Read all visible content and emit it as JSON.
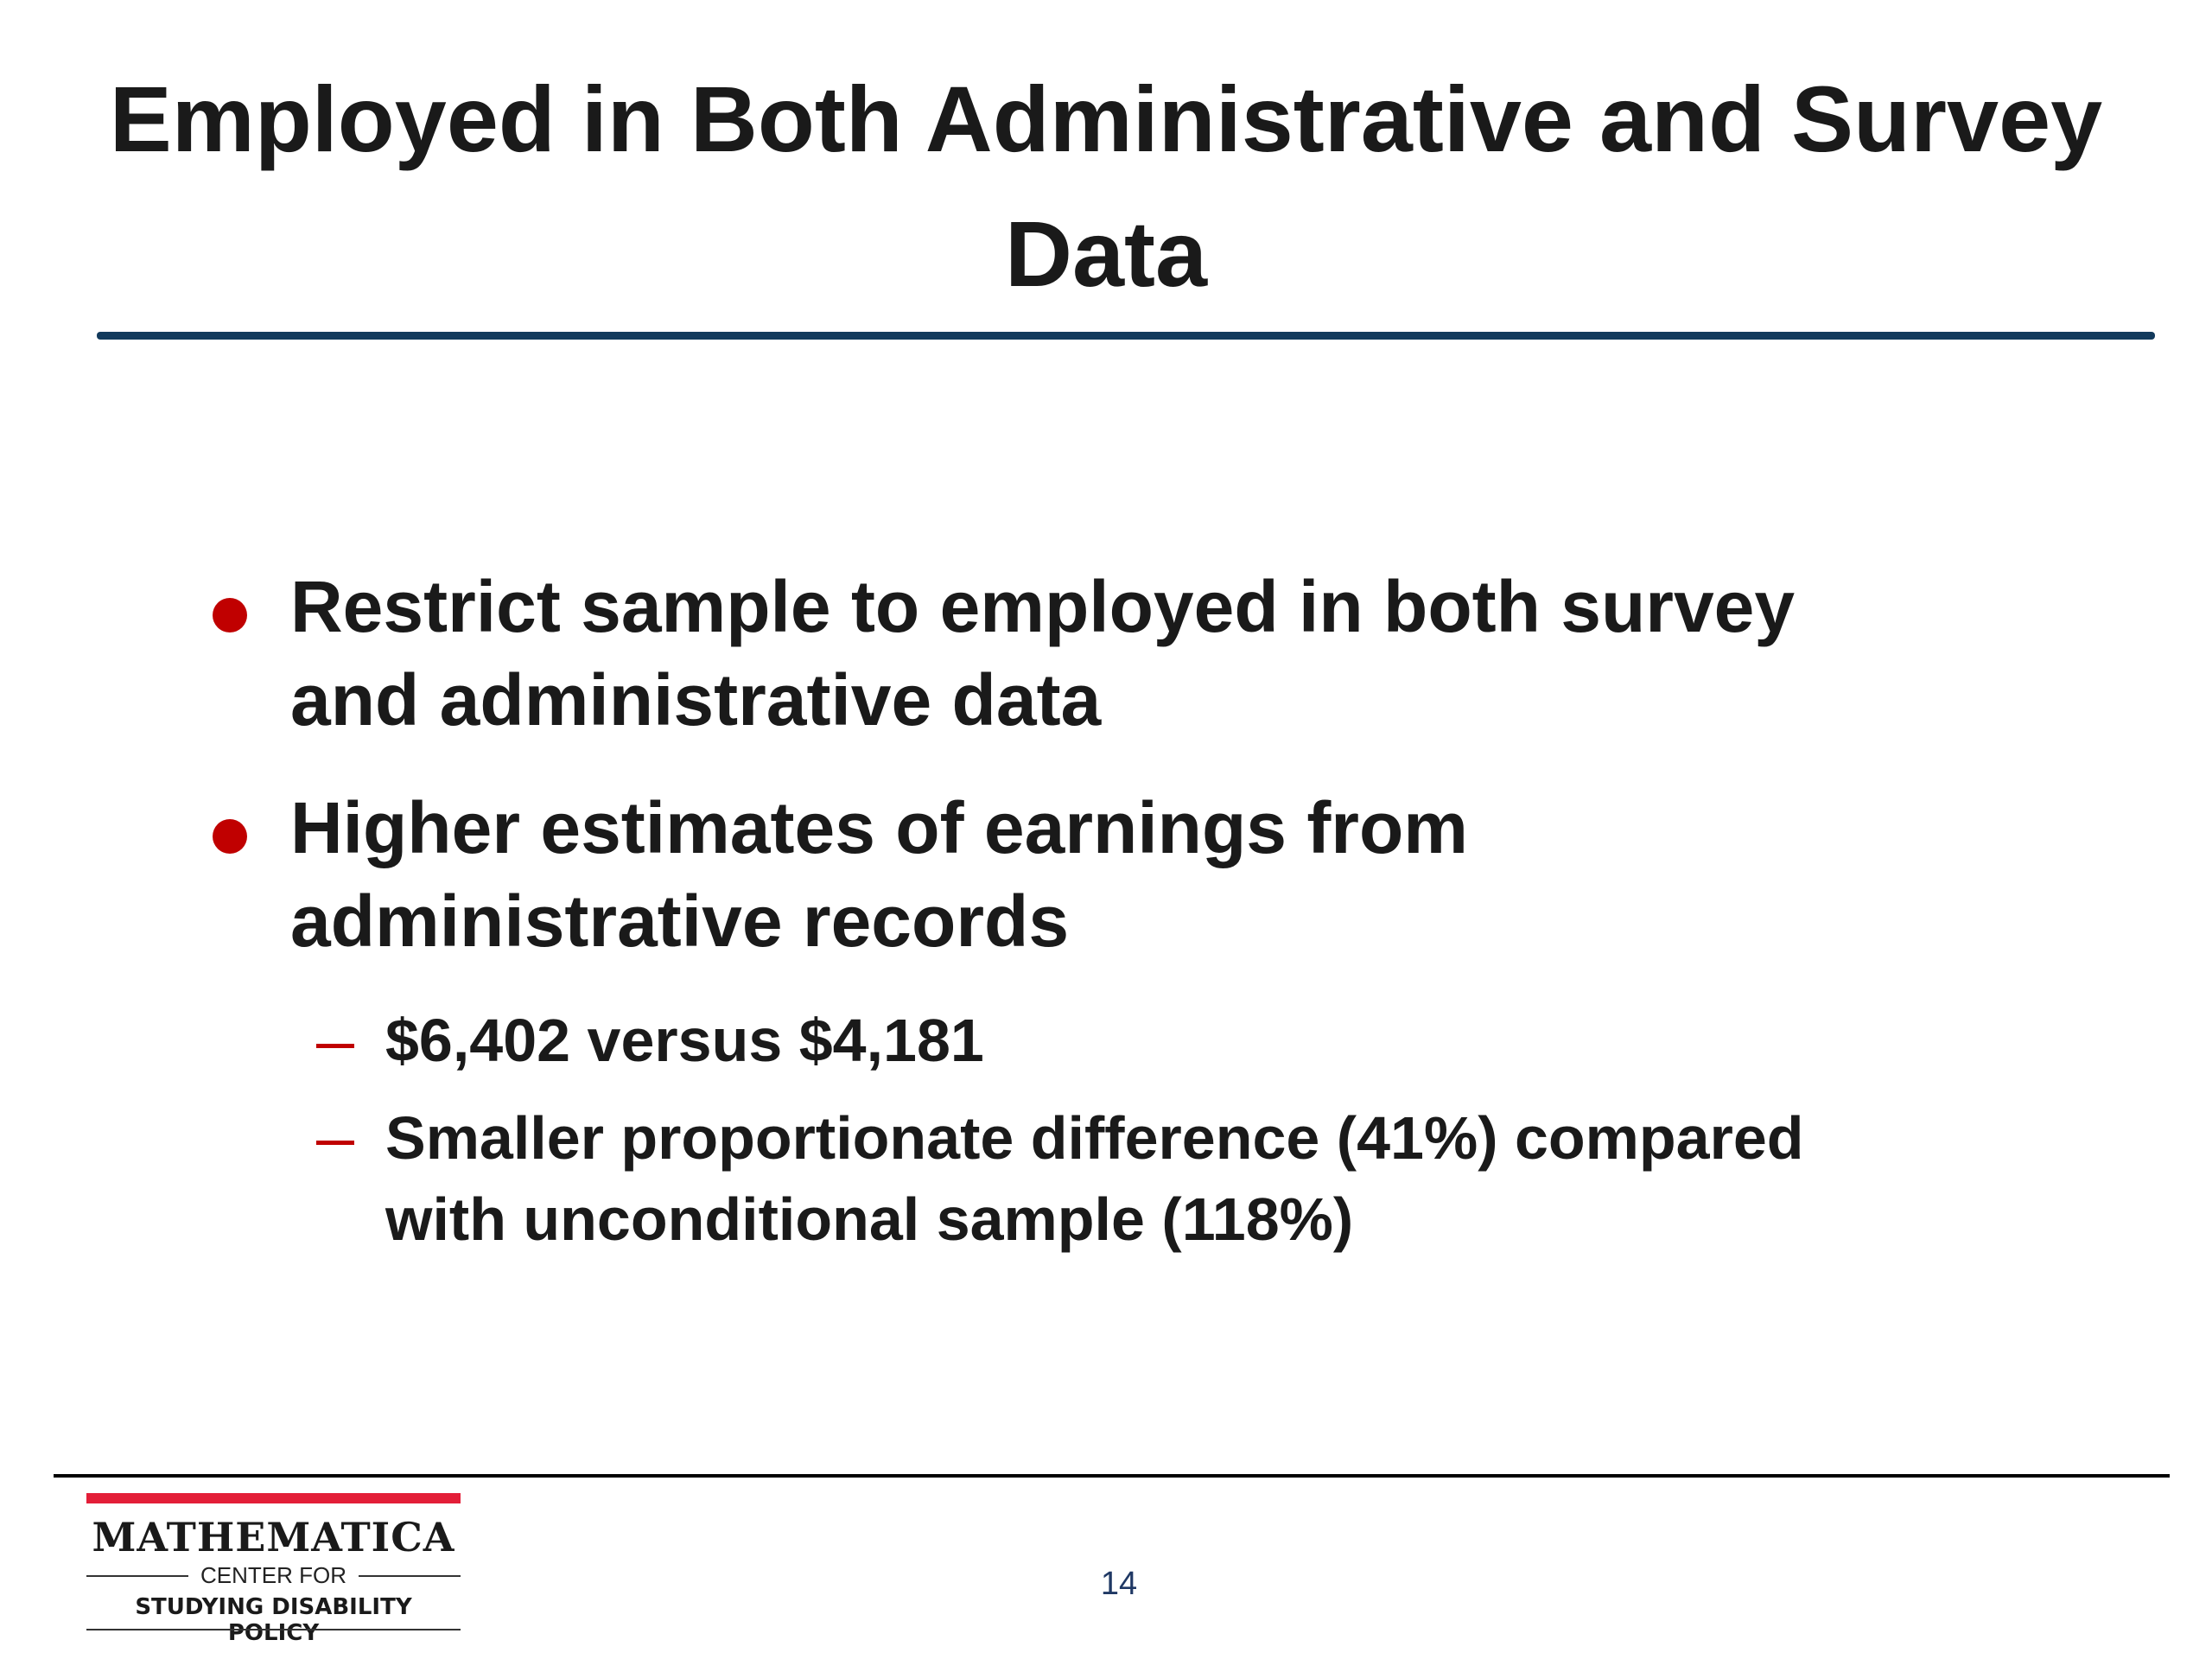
{
  "header": {
    "title": "Employed in Both Administrative and Survey Data"
  },
  "bullets": [
    {
      "text": "Restrict sample to employed in both survey and administrative data",
      "sub": []
    },
    {
      "text": "Higher estimates of earnings from administrative records",
      "sub": [
        "$6,402 versus $4,181",
        "Smaller proportionate difference (41%) compared with unconditional sample (118%)"
      ]
    }
  ],
  "footer": {
    "logo_name": "MATHEMATICA",
    "logo_center": "CENTER FOR",
    "logo_unit": "STUDYING DISABILITY POLICY",
    "page_number": "14"
  }
}
